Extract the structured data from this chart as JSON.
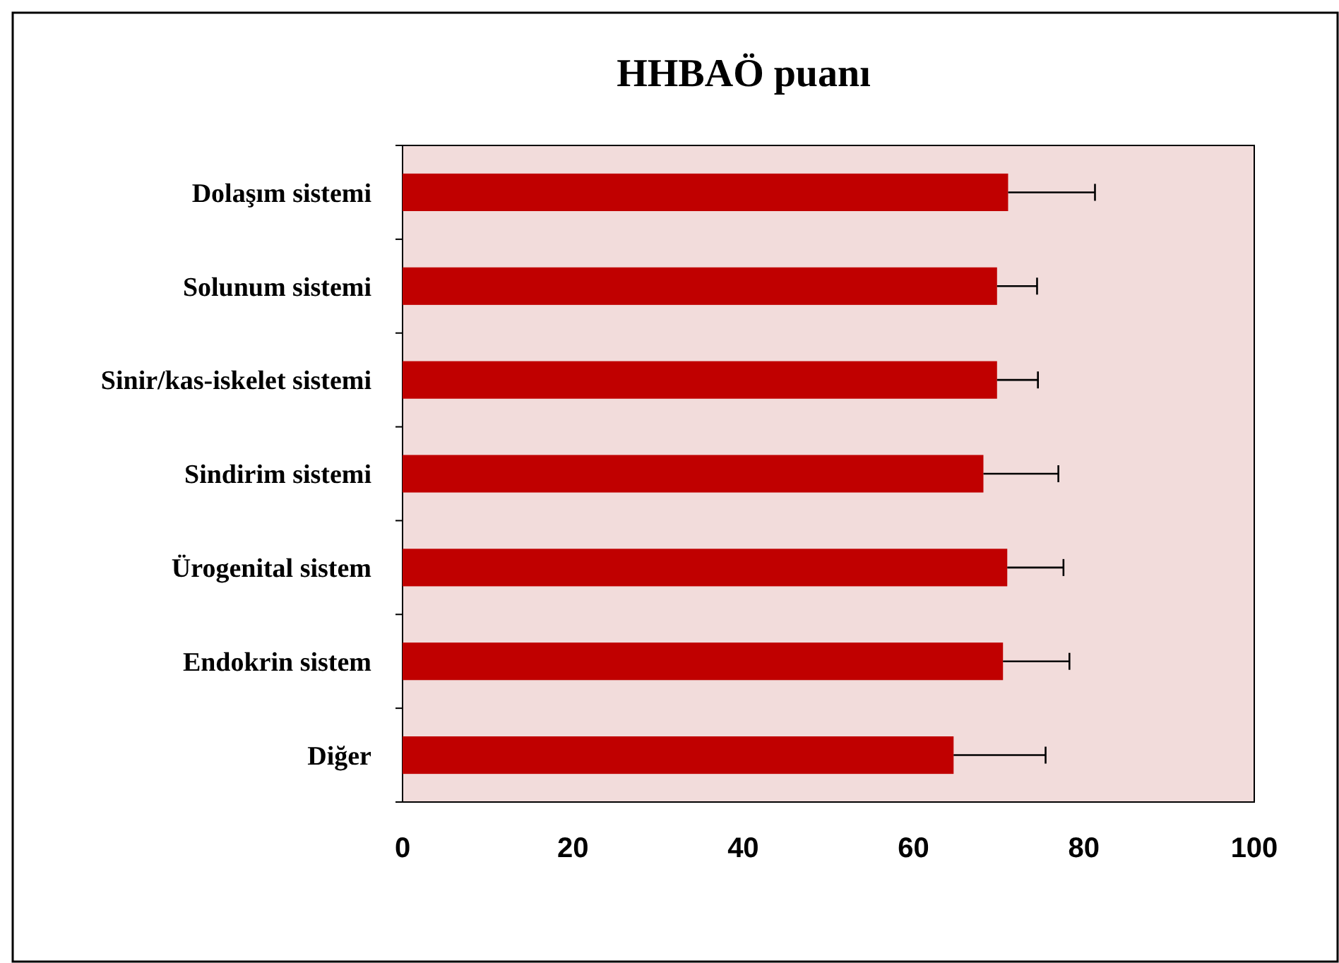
{
  "chart_data": {
    "type": "bar",
    "orientation": "horizontal",
    "title": "HHBAÖ puanı",
    "categories": [
      "Dolaşım sistemi",
      "Solunum sistemi",
      "Sinir/kas-iskelet sistemi",
      "Sindirim sistemi",
      "Ürogenital sistem",
      "Endokrin sistem",
      "Diğer"
    ],
    "values": [
      71.1,
      69.8,
      69.8,
      68.2,
      71.0,
      70.5,
      64.7
    ],
    "errors": [
      [
        71.1,
        81.3
      ],
      [
        69.8,
        74.5
      ],
      [
        69.8,
        74.6
      ],
      [
        68.2,
        77.0
      ],
      [
        71.0,
        77.6
      ],
      [
        70.5,
        78.3
      ],
      [
        64.7,
        75.5
      ]
    ],
    "color": "#c00000",
    "xlim": [
      0,
      100
    ],
    "xticks": [
      0,
      20,
      40,
      60,
      80,
      100
    ],
    "grid": false
  }
}
